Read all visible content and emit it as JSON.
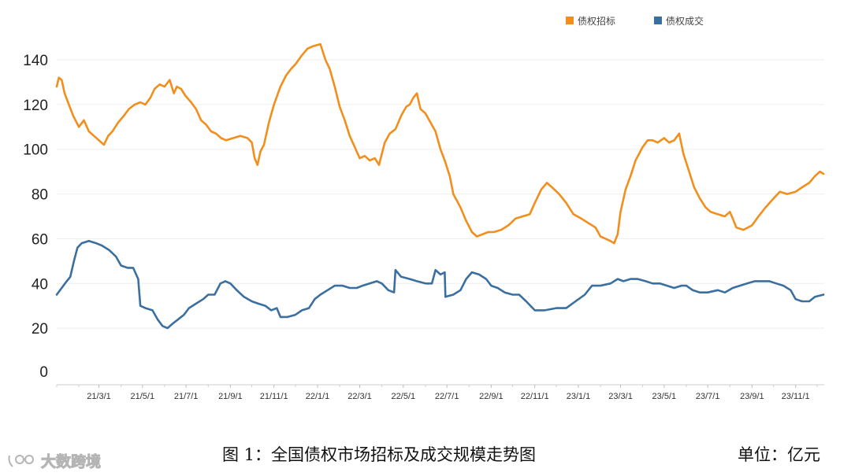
{
  "chart_data": {
    "type": "line",
    "title": "",
    "ylim": [
      0,
      150
    ],
    "yticks": [
      0,
      20,
      40,
      60,
      80,
      100,
      120,
      140
    ],
    "xticks": [
      "21/3/1",
      "21/5/1",
      "21/7/1",
      "21/9/1",
      "21/11/1",
      "22/1/1",
      "22/3/1",
      "22/5/1",
      "22/7/1",
      "22/9/1",
      "22/11/1",
      "23/1/1",
      "23/3/1",
      "23/5/1",
      "23/7/1",
      "23/9/1",
      "23/11/1"
    ],
    "legend_position": "top-right",
    "grid": true,
    "series": [
      {
        "name": "债权招标",
        "color": "#F28E1C",
        "points": [
          [
            "2021-01-01",
            128
          ],
          [
            "2021-01-04",
            132
          ],
          [
            "2021-01-08",
            131
          ],
          [
            "2021-01-12",
            125
          ],
          [
            "2021-01-18",
            120
          ],
          [
            "2021-01-24",
            115
          ],
          [
            "2021-02-01",
            110
          ],
          [
            "2021-02-08",
            113
          ],
          [
            "2021-02-15",
            108
          ],
          [
            "2021-02-22",
            106
          ],
          [
            "2021-03-01",
            104
          ],
          [
            "2021-03-08",
            102
          ],
          [
            "2021-03-14",
            106
          ],
          [
            "2021-03-20",
            108
          ],
          [
            "2021-03-28",
            112
          ],
          [
            "2021-04-05",
            115
          ],
          [
            "2021-04-12",
            118
          ],
          [
            "2021-04-20",
            120
          ],
          [
            "2021-04-28",
            121
          ],
          [
            "2021-05-05",
            120
          ],
          [
            "2021-05-12",
            123
          ],
          [
            "2021-05-18",
            127
          ],
          [
            "2021-05-25",
            129
          ],
          [
            "2021-06-01",
            128
          ],
          [
            "2021-06-08",
            131
          ],
          [
            "2021-06-14",
            125
          ],
          [
            "2021-06-18",
            128
          ],
          [
            "2021-06-24",
            127
          ],
          [
            "2021-06-30",
            124
          ],
          [
            "2021-07-08",
            121
          ],
          [
            "2021-07-15",
            118
          ],
          [
            "2021-07-22",
            113
          ],
          [
            "2021-07-29",
            111
          ],
          [
            "2021-08-05",
            108
          ],
          [
            "2021-08-12",
            107
          ],
          [
            "2021-08-19",
            105
          ],
          [
            "2021-08-26",
            104
          ],
          [
            "2021-09-05",
            105
          ],
          [
            "2021-09-15",
            106
          ],
          [
            "2021-09-25",
            105
          ],
          [
            "2021-10-01",
            103
          ],
          [
            "2021-10-05",
            96
          ],
          [
            "2021-10-09",
            93
          ],
          [
            "2021-10-13",
            99
          ],
          [
            "2021-10-18",
            102
          ],
          [
            "2021-10-25",
            112
          ],
          [
            "2021-11-01",
            120
          ],
          [
            "2021-11-10",
            128
          ],
          [
            "2021-11-18",
            133
          ],
          [
            "2021-11-25",
            136
          ],
          [
            "2021-12-01",
            138
          ],
          [
            "2021-12-10",
            142
          ],
          [
            "2021-12-18",
            145
          ],
          [
            "2021-12-25",
            146
          ],
          [
            "2022-01-05",
            147
          ],
          [
            "2022-01-12",
            140
          ],
          [
            "2022-01-18",
            136
          ],
          [
            "2022-01-25",
            128
          ],
          [
            "2022-02-01",
            119
          ],
          [
            "2022-02-08",
            113
          ],
          [
            "2022-02-15",
            106
          ],
          [
            "2022-02-22",
            101
          ],
          [
            "2022-03-01",
            96
          ],
          [
            "2022-03-08",
            97
          ],
          [
            "2022-03-15",
            95
          ],
          [
            "2022-03-22",
            96
          ],
          [
            "2022-03-28",
            93
          ],
          [
            "2022-04-05",
            103
          ],
          [
            "2022-04-12",
            107
          ],
          [
            "2022-04-20",
            109
          ],
          [
            "2022-04-28",
            115
          ],
          [
            "2022-05-05",
            119
          ],
          [
            "2022-05-10",
            120
          ],
          [
            "2022-05-15",
            123
          ],
          [
            "2022-05-20",
            125
          ],
          [
            "2022-05-25",
            118
          ],
          [
            "2022-06-01",
            116
          ],
          [
            "2022-06-08",
            112
          ],
          [
            "2022-06-15",
            108
          ],
          [
            "2022-06-22",
            100
          ],
          [
            "2022-06-28",
            95
          ],
          [
            "2022-07-05",
            88
          ],
          [
            "2022-07-10",
            80
          ],
          [
            "2022-07-20",
            74
          ],
          [
            "2022-07-28",
            68
          ],
          [
            "2022-08-05",
            63
          ],
          [
            "2022-08-12",
            61
          ],
          [
            "2022-08-20",
            62
          ],
          [
            "2022-08-28",
            63
          ],
          [
            "2022-09-05",
            63
          ],
          [
            "2022-09-15",
            64
          ],
          [
            "2022-09-25",
            66
          ],
          [
            "2022-10-05",
            69
          ],
          [
            "2022-10-15",
            70
          ],
          [
            "2022-10-25",
            71
          ],
          [
            "2022-11-01",
            76
          ],
          [
            "2022-11-10",
            82
          ],
          [
            "2022-11-18",
            85
          ],
          [
            "2022-11-25",
            83
          ],
          [
            "2022-12-05",
            80
          ],
          [
            "2022-12-15",
            76
          ],
          [
            "2022-12-25",
            71
          ],
          [
            "2023-01-05",
            69
          ],
          [
            "2023-01-15",
            67
          ],
          [
            "2023-01-25",
            65
          ],
          [
            "2023-02-01",
            61
          ],
          [
            "2023-02-08",
            60
          ],
          [
            "2023-02-15",
            59
          ],
          [
            "2023-02-20",
            58
          ],
          [
            "2023-02-25",
            62
          ],
          [
            "2023-03-01",
            72
          ],
          [
            "2023-03-08",
            82
          ],
          [
            "2023-03-15",
            88
          ],
          [
            "2023-03-22",
            95
          ],
          [
            "2023-04-01",
            101
          ],
          [
            "2023-04-08",
            104
          ],
          [
            "2023-04-15",
            104
          ],
          [
            "2023-04-22",
            103
          ],
          [
            "2023-05-01",
            105
          ],
          [
            "2023-05-08",
            103
          ],
          [
            "2023-05-15",
            104
          ],
          [
            "2023-05-22",
            107
          ],
          [
            "2023-05-28",
            98
          ],
          [
            "2023-06-05",
            90
          ],
          [
            "2023-06-12",
            83
          ],
          [
            "2023-06-20",
            78
          ],
          [
            "2023-06-28",
            74
          ],
          [
            "2023-07-05",
            72
          ],
          [
            "2023-07-15",
            71
          ],
          [
            "2023-07-25",
            70
          ],
          [
            "2023-08-01",
            72
          ],
          [
            "2023-08-05",
            69
          ],
          [
            "2023-08-10",
            65
          ],
          [
            "2023-08-20",
            64
          ],
          [
            "2023-09-01",
            66
          ],
          [
            "2023-09-10",
            70
          ],
          [
            "2023-09-20",
            74
          ],
          [
            "2023-10-01",
            78
          ],
          [
            "2023-10-10",
            81
          ],
          [
            "2023-10-20",
            80
          ],
          [
            "2023-11-01",
            81
          ],
          [
            "2023-11-10",
            83
          ],
          [
            "2023-11-20",
            85
          ],
          [
            "2023-11-28",
            88
          ],
          [
            "2023-12-05",
            90
          ],
          [
            "2023-12-10",
            89
          ]
        ]
      },
      {
        "name": "债权成交",
        "color": "#3A6F9F",
        "points": [
          [
            "2021-01-01",
            35
          ],
          [
            "2021-01-08",
            38
          ],
          [
            "2021-01-15",
            41
          ],
          [
            "2021-01-20",
            43
          ],
          [
            "2021-01-25",
            50
          ],
          [
            "2021-01-30",
            56
          ],
          [
            "2021-02-05",
            58
          ],
          [
            "2021-02-15",
            59
          ],
          [
            "2021-02-25",
            58
          ],
          [
            "2021-03-05",
            57
          ],
          [
            "2021-03-15",
            55
          ],
          [
            "2021-03-25",
            52
          ],
          [
            "2021-04-01",
            48
          ],
          [
            "2021-04-10",
            47
          ],
          [
            "2021-04-18",
            47
          ],
          [
            "2021-04-25",
            42
          ],
          [
            "2021-04-28",
            30
          ],
          [
            "2021-05-05",
            29
          ],
          [
            "2021-05-15",
            28
          ],
          [
            "2021-05-22",
            24
          ],
          [
            "2021-05-29",
            21
          ],
          [
            "2021-06-05",
            20
          ],
          [
            "2021-06-12",
            22
          ],
          [
            "2021-06-20",
            24
          ],
          [
            "2021-06-28",
            26
          ],
          [
            "2021-07-05",
            29
          ],
          [
            "2021-07-15",
            31
          ],
          [
            "2021-07-25",
            33
          ],
          [
            "2021-08-01",
            35
          ],
          [
            "2021-08-10",
            35
          ],
          [
            "2021-08-18",
            40
          ],
          [
            "2021-08-25",
            41
          ],
          [
            "2021-09-01",
            40
          ],
          [
            "2021-09-10",
            37
          ],
          [
            "2021-09-20",
            34
          ],
          [
            "2021-10-01",
            32
          ],
          [
            "2021-10-10",
            31
          ],
          [
            "2021-10-20",
            30
          ],
          [
            "2021-10-28",
            28
          ],
          [
            "2021-11-05",
            29
          ],
          [
            "2021-11-10",
            25
          ],
          [
            "2021-11-20",
            25
          ],
          [
            "2021-12-01",
            26
          ],
          [
            "2021-12-10",
            28
          ],
          [
            "2021-12-20",
            29
          ],
          [
            "2021-12-28",
            33
          ],
          [
            "2022-01-05",
            35
          ],
          [
            "2022-01-15",
            37
          ],
          [
            "2022-01-25",
            39
          ],
          [
            "2022-02-05",
            39
          ],
          [
            "2022-02-15",
            38
          ],
          [
            "2022-02-25",
            38
          ],
          [
            "2022-03-05",
            39
          ],
          [
            "2022-03-15",
            40
          ],
          [
            "2022-03-25",
            41
          ],
          [
            "2022-04-01",
            40
          ],
          [
            "2022-04-10",
            37
          ],
          [
            "2022-04-18",
            36
          ],
          [
            "2022-04-20",
            46
          ],
          [
            "2022-04-28",
            43
          ],
          [
            "2022-05-10",
            42
          ],
          [
            "2022-05-20",
            41
          ],
          [
            "2022-06-01",
            40
          ],
          [
            "2022-06-10",
            40
          ],
          [
            "2022-06-15",
            46
          ],
          [
            "2022-06-22",
            44
          ],
          [
            "2022-06-28",
            45
          ],
          [
            "2022-06-29",
            34
          ],
          [
            "2022-07-10",
            35
          ],
          [
            "2022-07-20",
            37
          ],
          [
            "2022-07-28",
            42
          ],
          [
            "2022-08-05",
            45
          ],
          [
            "2022-08-15",
            44
          ],
          [
            "2022-08-25",
            42
          ],
          [
            "2022-09-01",
            39
          ],
          [
            "2022-09-10",
            38
          ],
          [
            "2022-09-20",
            36
          ],
          [
            "2022-10-01",
            35
          ],
          [
            "2022-10-10",
            35
          ],
          [
            "2022-10-20",
            32
          ],
          [
            "2022-11-01",
            28
          ],
          [
            "2022-11-15",
            28
          ],
          [
            "2022-12-01",
            29
          ],
          [
            "2022-12-15",
            29
          ],
          [
            "2022-12-28",
            32
          ],
          [
            "2023-01-10",
            35
          ],
          [
            "2023-01-20",
            39
          ],
          [
            "2023-02-01",
            39
          ],
          [
            "2023-02-15",
            40
          ],
          [
            "2023-02-25",
            42
          ],
          [
            "2023-03-05",
            41
          ],
          [
            "2023-03-15",
            42
          ],
          [
            "2023-03-25",
            42
          ],
          [
            "2023-04-05",
            41
          ],
          [
            "2023-04-15",
            40
          ],
          [
            "2023-04-25",
            40
          ],
          [
            "2023-05-05",
            39
          ],
          [
            "2023-05-15",
            38
          ],
          [
            "2023-05-25",
            39
          ],
          [
            "2023-06-01",
            39
          ],
          [
            "2023-06-10",
            37
          ],
          [
            "2023-06-20",
            36
          ],
          [
            "2023-07-01",
            36
          ],
          [
            "2023-07-15",
            37
          ],
          [
            "2023-07-25",
            36
          ],
          [
            "2023-08-05",
            38
          ],
          [
            "2023-08-15",
            39
          ],
          [
            "2023-08-25",
            40
          ],
          [
            "2023-09-05",
            41
          ],
          [
            "2023-09-15",
            41
          ],
          [
            "2023-09-25",
            41
          ],
          [
            "2023-10-05",
            40
          ],
          [
            "2023-10-15",
            39
          ],
          [
            "2023-10-25",
            37
          ],
          [
            "2023-11-01",
            33
          ],
          [
            "2023-11-10",
            32
          ],
          [
            "2023-11-20",
            32
          ],
          [
            "2023-11-28",
            34
          ],
          [
            "2023-12-10",
            35
          ]
        ]
      }
    ]
  },
  "caption": "图 1：全国债权市场招标及成交规模走势图",
  "unit": "单位：亿元",
  "watermark": "大数跨境"
}
